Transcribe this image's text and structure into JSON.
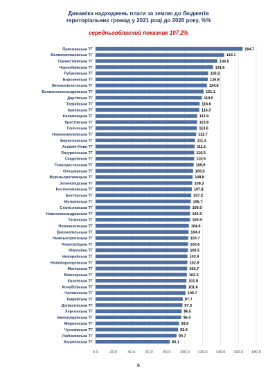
{
  "chart_data": {
    "type": "bar",
    "orientation": "horizontal",
    "title_lines": [
      "Динаміка надходжень плати за землю до бюджетів",
      "територіальних громад у 2021 році до 2020 року, %%"
    ],
    "subtitle": "середньообласний показник 107,2%",
    "categories": [
      "Присиваська ТГ",
      "Великокопанівська ТГ",
      "Горностаївська ТГ",
      "Чорнобаївська ТГ",
      "Рубанівська ТГ",
      "Борозенська ТГ",
      "Великолепетиська ТГ",
      "Великоолександрівська ТГ",
      "Дар'ївська ТГ",
      "Таврійська ТГ",
      "Іванівська ТГ",
      "Каланчацька ТГ",
      "Хрестівська ТГ",
      "Генічеська ТГ",
      "Новомиколаївська ТГ",
      "Бериславська ТГ",
      "Асканія-Нова ТГ",
      "Лазурненська ТГ",
      "Скадовська ТГ",
      "Голопристанська ТГ",
      "Олешківська ТГ",
      "Верхньорогачицька ТГ",
      "Зеленопідська ТГ",
      "Костянтинівська ТГ",
      "Бехтерська ТГ",
      "Музиківська ТГ",
      "Станіславська ТГ",
      "Новоолександрівська ТГ",
      "Тягинська ТГ",
      "Новокаховська ТГ",
      "Високопільська ТГ",
      "Нижньосірогозька ТГ",
      "Новотроїцька ТГ",
      "Ювілейна ТГ",
      "Новорайська ТГ",
      "Нововоронцовська ТГ",
      "Милівська ТГ",
      "Білозерська ТГ",
      "Каховська ТГ",
      "Кочубеївська ТГ",
      "Чаплинська ТГ",
      "Таврійська ТГ",
      "Долматівська ТГ",
      "Херсонська ТГ",
      "Виноградівська ТГ",
      "Мирненська ТГ",
      "Чулаківська ТГ",
      "Любимівська ТГ",
      "Калинівська ТГ"
    ],
    "values": [
      164.7,
      144.1,
      136.5,
      131.6,
      126.2,
      125.8,
      124.8,
      121.1,
      119.0,
      116.6,
      116.3,
      113.9,
      113.8,
      113.6,
      112.7,
      111.4,
      111.1,
      110.5,
      110.5,
      109.9,
      109.3,
      108.8,
      108.3,
      107.8,
      107.2,
      106.7,
      106.0,
      105.9,
      105.9,
      104.6,
      104.3,
      103.7,
      103.6,
      103.5,
      102.9,
      102.9,
      102.7,
      102.3,
      101.8,
      101.6,
      100.7,
      97.7,
      97.3,
      96.5,
      96.0,
      93.6,
      92.4,
      90.7,
      83.1
    ],
    "xlim": [
      0,
      180
    ],
    "xticks": [
      0,
      20,
      40,
      60,
      80,
      100,
      120,
      140,
      160,
      180
    ],
    "xtick_labels": [
      "0.0",
      "20.0",
      "40.0",
      "60.0",
      "80.0",
      "100.0",
      "120.0",
      "140.0",
      "160.0",
      "180.0"
    ],
    "value_labels": [
      "164.7",
      "144.1",
      "136.5",
      "131.6",
      "126.2",
      "125.8",
      "124.8",
      "121.1",
      "119.0",
      "116.6",
      "116.3",
      "113.9",
      "113.8",
      "113.6",
      "112.7",
      "111.4",
      "111.1",
      "110.5",
      "110.5",
      "109.9",
      "109.3",
      "108.8",
      "108.3",
      "107.8",
      "107.2",
      "106.7",
      "106.0",
      "105.9",
      "105.9",
      "104.6",
      "104.3",
      "103.7",
      "103.6",
      "103.5",
      "102.9",
      "102.9",
      "102.7",
      "102.3",
      "101.8",
      "101.6",
      "100.7",
      "97.7",
      "97.3",
      "96.5",
      "96.0",
      "93.6",
      "92.4",
      "90.7",
      "83.1"
    ],
    "grid": "vertical",
    "bar_color": "#4F6FA0",
    "title_color": "#1F3864",
    "subtitle_color": "#C00000"
  },
  "page": {
    "number": "6"
  }
}
